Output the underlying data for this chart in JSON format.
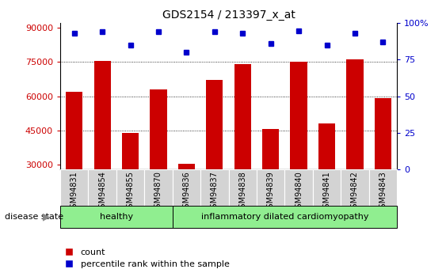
{
  "title": "GDS2154 / 213397_x_at",
  "samples": [
    "GSM94831",
    "GSM94854",
    "GSM94855",
    "GSM94870",
    "GSM94836",
    "GSM94837",
    "GSM94838",
    "GSM94839",
    "GSM94840",
    "GSM94841",
    "GSM94842",
    "GSM94843"
  ],
  "counts": [
    62000,
    75500,
    44000,
    63000,
    30500,
    67000,
    74000,
    45500,
    75000,
    48000,
    76000,
    59000
  ],
  "percentiles": [
    93,
    94,
    85,
    94,
    80,
    94,
    93,
    86,
    95,
    85,
    93,
    87
  ],
  "healthy_count": 4,
  "ylim_left": [
    28000,
    92000
  ],
  "ylim_right": [
    0,
    100
  ],
  "yticks_left": [
    30000,
    45000,
    60000,
    75000,
    90000
  ],
  "yticks_right": [
    0,
    25,
    50,
    75,
    100
  ],
  "bar_color": "#cc0000",
  "dot_color": "#0000cc",
  "healthy_bg": "#90ee90",
  "label_bg": "#d3d3d3",
  "healthy_label": "healthy",
  "disease_label": "inflammatory dilated cardiomyopathy",
  "legend_count": "count",
  "legend_pct": "percentile rank within the sample",
  "disease_state_label": "disease state"
}
